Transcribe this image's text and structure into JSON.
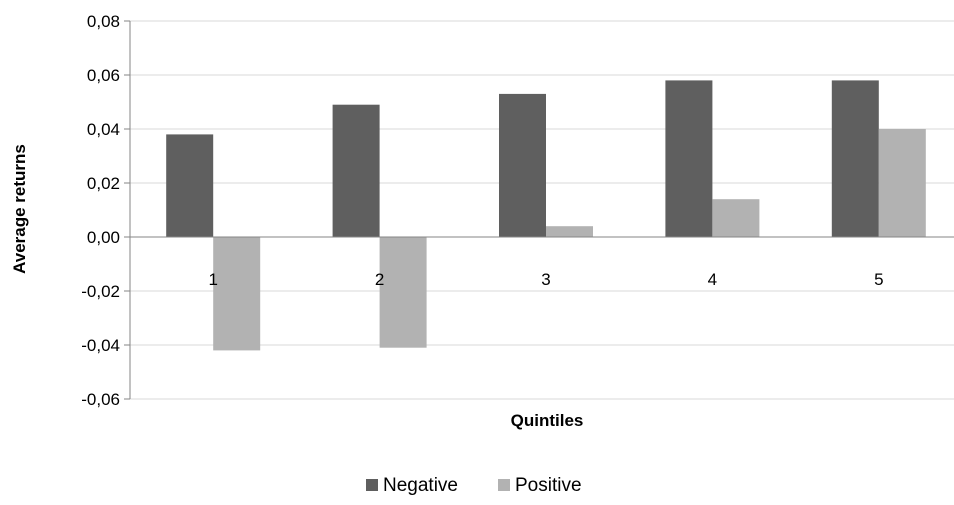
{
  "chart_data": {
    "type": "bar",
    "title": "",
    "xlabel": "Quintiles",
    "ylabel": "Average returns",
    "categories": [
      "1",
      "2",
      "3",
      "4",
      "5"
    ],
    "series": [
      {
        "name": "Negative",
        "color": "#5f5f5f",
        "values": [
          0.038,
          0.049,
          0.053,
          0.058,
          0.058
        ]
      },
      {
        "name": "Positive",
        "color": "#b2b2b2",
        "values": [
          -0.042,
          -0.041,
          0.004,
          0.014,
          0.04
        ]
      }
    ],
    "ylim": [
      -0.06,
      0.08
    ],
    "yticks": [
      0.08,
      0.06,
      0.04,
      0.02,
      0.0,
      -0.02,
      -0.04,
      -0.06
    ],
    "ytick_labels": [
      "0,08",
      "0,06",
      "0,04",
      "0,02",
      "0,00",
      "-0,02",
      "-0,04",
      "-0,06"
    ],
    "grid": "horizontal",
    "legend_position": "bottom"
  }
}
